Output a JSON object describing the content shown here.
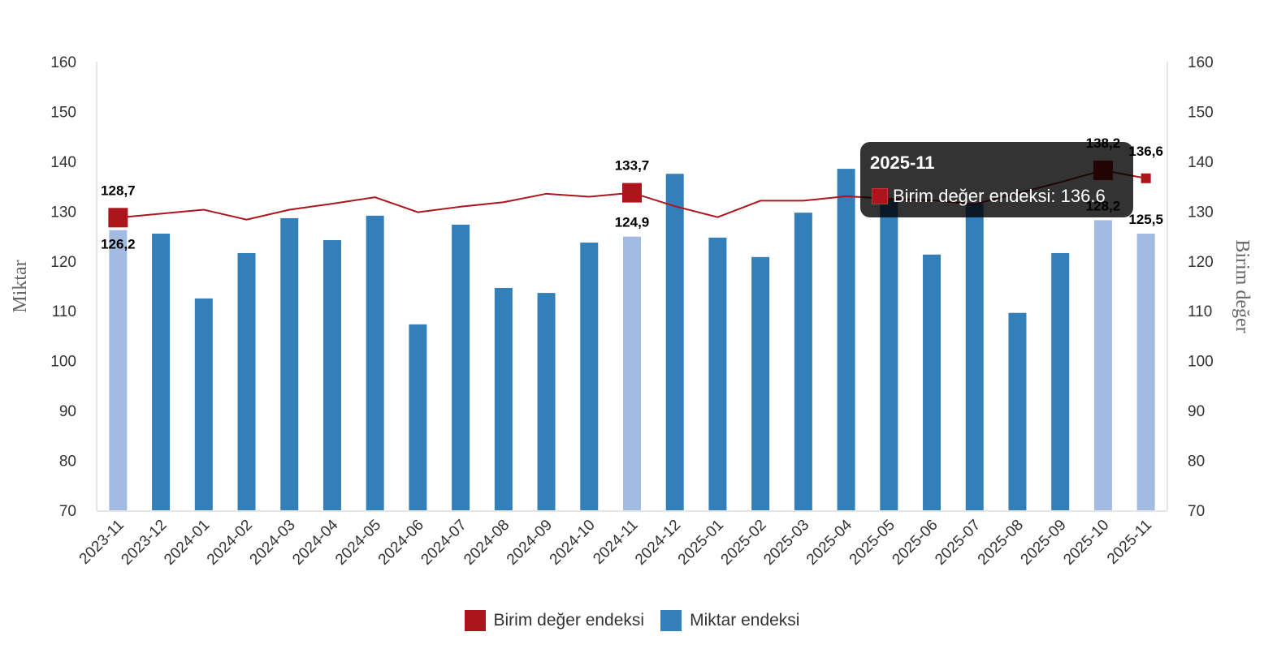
{
  "chart_data": {
    "type": "bar+line",
    "categories": [
      "2023-11",
      "2023-12",
      "2024-01",
      "2024-02",
      "2024-03",
      "2024-04",
      "2024-05",
      "2024-06",
      "2024-07",
      "2024-08",
      "2024-09",
      "2024-10",
      "2024-11",
      "2024-12",
      "2025-01",
      "2025-02",
      "2025-03",
      "2025-04",
      "2025-05",
      "2025-06",
      "2025-07",
      "2025-08",
      "2025-09",
      "2025-10",
      "2025-11"
    ],
    "series": [
      {
        "name": "Miktar endeksi",
        "type": "bar",
        "axis": "left",
        "color": "#337fb9",
        "highlight_color": "#a3bbe3",
        "values": [
          126.2,
          125.5,
          112.5,
          121.6,
          128.6,
          124.2,
          129.1,
          107.3,
          127.3,
          114.6,
          113.6,
          123.7,
          124.9,
          137.5,
          124.7,
          120.8,
          129.7,
          138.5,
          132.5,
          121.3,
          131.5,
          109.6,
          121.6,
          128.2,
          125.5
        ],
        "highlighted": [
          "2023-11",
          "2024-11",
          "2025-10",
          "2025-11"
        ],
        "data_labels": {
          "2023-11": "126,2",
          "2024-11": "124,9",
          "2025-10": "128,2",
          "2025-11": "125,5"
        }
      },
      {
        "name": "Birim değer endeksi",
        "type": "line",
        "axis": "right",
        "color": "#ad151c",
        "values": [
          128.7,
          129.5,
          130.3,
          128.3,
          130.3,
          131.5,
          132.8,
          129.8,
          130.9,
          131.8,
          133.5,
          132.9,
          133.7,
          131.0,
          128.8,
          132.1,
          132.1,
          133.0,
          132.5,
          132.2,
          131.4,
          133.6,
          135.8,
          138.2,
          136.6
        ],
        "markers": [
          "2023-11",
          "2024-11",
          "2025-10",
          "2025-11"
        ],
        "data_labels": {
          "2023-11": "128,7",
          "2024-11": "133,7",
          "2025-10": "138,2",
          "2025-11": "136,6"
        }
      }
    ],
    "ylabel": "Miktar",
    "y2label": "Birim değer",
    "ylim": [
      70,
      160
    ],
    "y2lim": [
      70,
      160
    ],
    "yticks": [
      70,
      80,
      90,
      100,
      110,
      120,
      130,
      140,
      150,
      160
    ],
    "grid": false,
    "legend": "bottom-center"
  },
  "legend": {
    "items": [
      {
        "label": "Birim değer endeksi",
        "color": "#ad151c"
      },
      {
        "label": "Miktar endeksi",
        "color": "#337fb9"
      }
    ]
  },
  "tooltip": {
    "title": "2025-11",
    "series": "Birim değer endeksi",
    "value": "136.6",
    "text": "Birim değer endeksi: 136.6"
  }
}
